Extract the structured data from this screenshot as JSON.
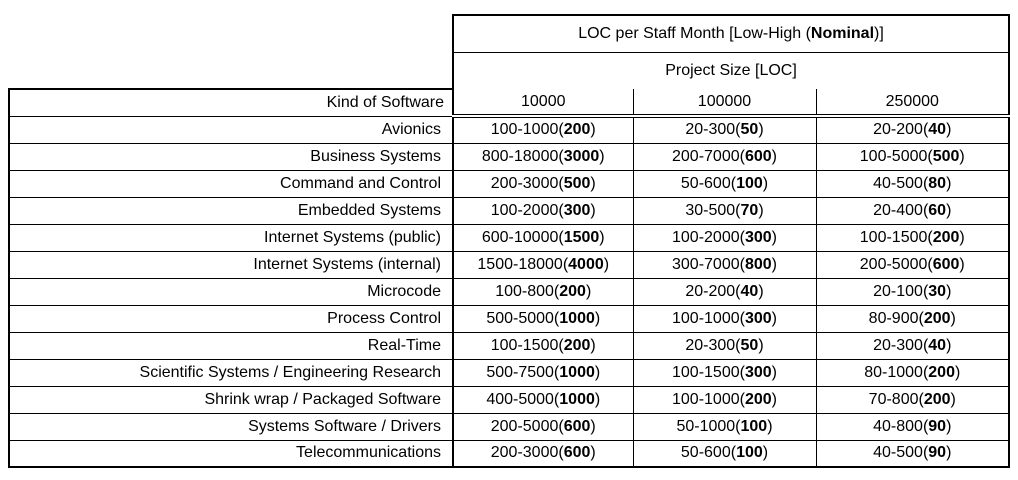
{
  "format": {
    "open": "(",
    "close": ")"
  },
  "chart_data": {
    "type": "table",
    "title": "LOC per Staff Month [Low-High (Nominal)]",
    "title_parts": {
      "prefix": "LOC per Staff Month [Low-High (",
      "bold": "Nominal",
      "suffix": ")]"
    },
    "subtitle": "Project Size [LOC]",
    "row_header": "Kind of Software",
    "columns": [
      "10000",
      "100000",
      "250000"
    ],
    "rows": [
      {
        "label": "Avionics",
        "cells": [
          {
            "range": "100-1000",
            "nominal": "200"
          },
          {
            "range": "20-300",
            "nominal": "50"
          },
          {
            "range": "20-200",
            "nominal": "40"
          }
        ]
      },
      {
        "label": "Business Systems",
        "cells": [
          {
            "range": "800-18000",
            "nominal": "3000"
          },
          {
            "range": "200-7000",
            "nominal": "600"
          },
          {
            "range": "100-5000",
            "nominal": "500"
          }
        ]
      },
      {
        "label": "Command and Control",
        "cells": [
          {
            "range": "200-3000",
            "nominal": "500"
          },
          {
            "range": "50-600",
            "nominal": "100"
          },
          {
            "range": "40-500",
            "nominal": "80"
          }
        ]
      },
      {
        "label": "Embedded Systems",
        "cells": [
          {
            "range": "100-2000",
            "nominal": "300"
          },
          {
            "range": "30-500",
            "nominal": "70"
          },
          {
            "range": "20-400",
            "nominal": "60"
          }
        ]
      },
      {
        "label": "Internet Systems (public)",
        "cells": [
          {
            "range": "600-10000",
            "nominal": "1500"
          },
          {
            "range": "100-2000",
            "nominal": "300"
          },
          {
            "range": "100-1500",
            "nominal": "200"
          }
        ]
      },
      {
        "label": "Internet Systems (internal)",
        "cells": [
          {
            "range": "1500-18000",
            "nominal": "4000"
          },
          {
            "range": "300-7000",
            "nominal": "800"
          },
          {
            "range": "200-5000",
            "nominal": "600"
          }
        ]
      },
      {
        "label": "Microcode",
        "cells": [
          {
            "range": "100-800",
            "nominal": "200"
          },
          {
            "range": "20-200",
            "nominal": "40"
          },
          {
            "range": "20-100",
            "nominal": "30"
          }
        ]
      },
      {
        "label": "Process Control",
        "cells": [
          {
            "range": "500-5000",
            "nominal": "1000"
          },
          {
            "range": "100-1000",
            "nominal": "300"
          },
          {
            "range": "80-900",
            "nominal": "200"
          }
        ]
      },
      {
        "label": "Real-Time",
        "cells": [
          {
            "range": "100-1500",
            "nominal": "200"
          },
          {
            "range": "20-300",
            "nominal": "50"
          },
          {
            "range": "20-300",
            "nominal": "40"
          }
        ]
      },
      {
        "label": "Scientific Systems / Engineering Research",
        "cells": [
          {
            "range": "500-7500",
            "nominal": "1000"
          },
          {
            "range": "100-1500",
            "nominal": "300"
          },
          {
            "range": "80-1000",
            "nominal": "200"
          }
        ]
      },
      {
        "label": "Shrink wrap / Packaged Software",
        "cells": [
          {
            "range": "400-5000",
            "nominal": "1000"
          },
          {
            "range": "100-1000",
            "nominal": "200"
          },
          {
            "range": "70-800",
            "nominal": "200"
          }
        ]
      },
      {
        "label": "Systems Software / Drivers",
        "cells": [
          {
            "range": "200-5000",
            "nominal": "600"
          },
          {
            "range": "50-1000",
            "nominal": "100"
          },
          {
            "range": "40-800",
            "nominal": "90"
          }
        ]
      },
      {
        "label": "Telecommunications",
        "cells": [
          {
            "range": "200-3000",
            "nominal": "600"
          },
          {
            "range": "50-600",
            "nominal": "100"
          },
          {
            "range": "40-500",
            "nominal": "90"
          }
        ]
      }
    ],
    "colors": {
      "text": "#000000",
      "background": "#ffffff",
      "border": "#000000"
    }
  }
}
